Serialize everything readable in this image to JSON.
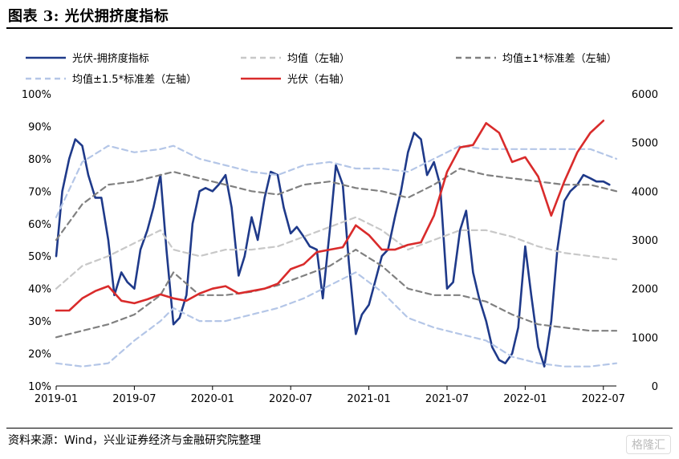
{
  "figure": {
    "title": "图表 3:  光伏拥挤度指标",
    "source": "资料来源：Wind，兴业证券经济与金融研究院整理",
    "watermark": "格隆汇"
  },
  "chart_data": {
    "type": "line",
    "x_ticks": [
      "2019-01",
      "2019-07",
      "2020-01",
      "2020-07",
      "2021-01",
      "2021-07",
      "2022-01",
      "2022-07"
    ],
    "x_range": [
      "2019-01",
      "2022-08"
    ],
    "left_axis": {
      "ticks": [
        "10%",
        "20%",
        "30%",
        "40%",
        "50%",
        "60%",
        "70%",
        "80%",
        "90%",
        "100%"
      ],
      "ylim": [
        10,
        100
      ]
    },
    "right_axis": {
      "ticks": [
        "0",
        "1000",
        "2000",
        "3000",
        "4000",
        "5000",
        "6000"
      ],
      "ylim": [
        0,
        6000
      ]
    },
    "colors": {
      "crowding": "#1f3a8a",
      "mean": "#c8c8c8",
      "band1": "#808080",
      "band15": "#b4c6e7",
      "pv": "#d92b2b"
    },
    "series": [
      {
        "name": "光伏-拥挤度指标",
        "axis": "left",
        "style": "solid",
        "color": "#1f3a8a",
        "points": [
          [
            "2019-01",
            50
          ],
          [
            "2019-01-15",
            70
          ],
          [
            "2019-02",
            80
          ],
          [
            "2019-02-15",
            86
          ],
          [
            "2019-03",
            84
          ],
          [
            "2019-03-15",
            75
          ],
          [
            "2019-04",
            68
          ],
          [
            "2019-04-15",
            68
          ],
          [
            "2019-05",
            55
          ],
          [
            "2019-05-15",
            38
          ],
          [
            "2019-06",
            45
          ],
          [
            "2019-06-15",
            42
          ],
          [
            "2019-07",
            40
          ],
          [
            "2019-07-15",
            52
          ],
          [
            "2019-08",
            58
          ],
          [
            "2019-08-15",
            65
          ],
          [
            "2019-09",
            75
          ],
          [
            "2019-09-15",
            52
          ],
          [
            "2019-10",
            29
          ],
          [
            "2019-10-15",
            31
          ],
          [
            "2019-11",
            38
          ],
          [
            "2019-11-15",
            60
          ],
          [
            "2019-12",
            70
          ],
          [
            "2019-12-15",
            71
          ],
          [
            "2020-01",
            70
          ],
          [
            "2020-01-15",
            72
          ],
          [
            "2020-02",
            75
          ],
          [
            "2020-02-15",
            65
          ],
          [
            "2020-03",
            44
          ],
          [
            "2020-03-15",
            50
          ],
          [
            "2020-04",
            62
          ],
          [
            "2020-04-15",
            55
          ],
          [
            "2020-05",
            68
          ],
          [
            "2020-05-15",
            76
          ],
          [
            "2020-06",
            75
          ],
          [
            "2020-06-15",
            65
          ],
          [
            "2020-07",
            57
          ],
          [
            "2020-07-15",
            59
          ],
          [
            "2020-08",
            56
          ],
          [
            "2020-08-15",
            53
          ],
          [
            "2020-09",
            52
          ],
          [
            "2020-09-15",
            37
          ],
          [
            "2020-10",
            58
          ],
          [
            "2020-10-15",
            78
          ],
          [
            "2020-11",
            72
          ],
          [
            "2020-11-15",
            48
          ],
          [
            "2020-12",
            26
          ],
          [
            "2020-12-15",
            32
          ],
          [
            "2021-01",
            35
          ],
          [
            "2021-01-15",
            42
          ],
          [
            "2021-02",
            50
          ],
          [
            "2021-02-15",
            52
          ],
          [
            "2021-03",
            62
          ],
          [
            "2021-03-15",
            70
          ],
          [
            "2021-04",
            82
          ],
          [
            "2021-04-15",
            88
          ],
          [
            "2021-05",
            86
          ],
          [
            "2021-05-15",
            75
          ],
          [
            "2021-06",
            79
          ],
          [
            "2021-06-15",
            72
          ],
          [
            "2021-07",
            40
          ],
          [
            "2021-07-15",
            42
          ],
          [
            "2021-08",
            58
          ],
          [
            "2021-08-15",
            64
          ],
          [
            "2021-09",
            45
          ],
          [
            "2021-09-15",
            37
          ],
          [
            "2021-10",
            30
          ],
          [
            "2021-10-15",
            22
          ],
          [
            "2021-11",
            18
          ],
          [
            "2021-11-15",
            17
          ],
          [
            "2021-12",
            20
          ],
          [
            "2021-12-15",
            28
          ],
          [
            "2022-01",
            53
          ],
          [
            "2022-01-15",
            38
          ],
          [
            "2022-02",
            22
          ],
          [
            "2022-02-15",
            16
          ],
          [
            "2022-03",
            30
          ],
          [
            "2022-03-15",
            52
          ],
          [
            "2022-04",
            67
          ],
          [
            "2022-04-15",
            70
          ],
          [
            "2022-05",
            72
          ],
          [
            "2022-05-15",
            75
          ],
          [
            "2022-06",
            74
          ],
          [
            "2022-06-15",
            73
          ],
          [
            "2022-07",
            73
          ],
          [
            "2022-07-15",
            72
          ]
        ]
      },
      {
        "name": "均值（左轴）",
        "axis": "left",
        "style": "dashed",
        "color": "#c8c8c8",
        "points": [
          [
            "2019-01",
            40
          ],
          [
            "2019-03",
            47
          ],
          [
            "2019-05",
            50
          ],
          [
            "2019-07",
            54
          ],
          [
            "2019-09",
            58
          ],
          [
            "2019-10",
            52
          ],
          [
            "2019-12",
            50
          ],
          [
            "2020-02",
            52
          ],
          [
            "2020-04",
            52
          ],
          [
            "2020-06",
            53
          ],
          [
            "2020-08",
            56
          ],
          [
            "2020-10",
            59
          ],
          [
            "2020-12",
            62
          ],
          [
            "2021-02",
            58
          ],
          [
            "2021-04",
            52
          ],
          [
            "2021-06",
            55
          ],
          [
            "2021-08",
            58
          ],
          [
            "2021-10",
            58
          ],
          [
            "2021-12",
            56
          ],
          [
            "2022-02",
            53
          ],
          [
            "2022-04",
            51
          ],
          [
            "2022-06",
            50
          ],
          [
            "2022-08",
            49
          ]
        ]
      },
      {
        "name": "均值±1*标准差（左轴）",
        "axis": "left",
        "style": "dashed",
        "color": "#808080",
        "points": [
          [
            "2019-01",
            25
          ],
          [
            "2019-03",
            27
          ],
          [
            "2019-05",
            29
          ],
          [
            "2019-07",
            32
          ],
          [
            "2019-09",
            38
          ],
          [
            "2019-10",
            45
          ],
          [
            "2019-12",
            38
          ],
          [
            "2020-02",
            38
          ],
          [
            "2020-04",
            39
          ],
          [
            "2020-06",
            41
          ],
          [
            "2020-08",
            44
          ],
          [
            "2020-10",
            47
          ],
          [
            "2020-12",
            52
          ],
          [
            "2021-02",
            47
          ],
          [
            "2021-04",
            40
          ],
          [
            "2021-06",
            38
          ],
          [
            "2021-08",
            38
          ],
          [
            "2021-10",
            36
          ],
          [
            "2021-12",
            32
          ],
          [
            "2022-02",
            29
          ],
          [
            "2022-04",
            28
          ],
          [
            "2022-06",
            27
          ],
          [
            "2022-08",
            27
          ]
        ]
      },
      {
        "name": "均值±1*标准差（左轴）",
        "axis": "left",
        "style": "dashed",
        "color": "#808080",
        "points": [
          [
            "2019-01",
            55
          ],
          [
            "2019-03",
            66
          ],
          [
            "2019-05",
            72
          ],
          [
            "2019-07",
            73
          ],
          [
            "2019-09",
            75
          ],
          [
            "2019-10",
            76
          ],
          [
            "2019-12",
            74
          ],
          [
            "2020-02",
            72
          ],
          [
            "2020-04",
            70
          ],
          [
            "2020-06",
            69
          ],
          [
            "2020-08",
            72
          ],
          [
            "2020-10",
            73
          ],
          [
            "2020-12",
            71
          ],
          [
            "2021-02",
            70
          ],
          [
            "2021-04",
            68
          ],
          [
            "2021-06",
            72
          ],
          [
            "2021-08",
            77
          ],
          [
            "2021-10",
            75
          ],
          [
            "2021-12",
            74
          ],
          [
            "2022-02",
            73
          ],
          [
            "2022-04",
            72
          ],
          [
            "2022-06",
            72
          ],
          [
            "2022-08",
            70
          ]
        ]
      },
      {
        "name": "均值±1.5*标准差（左轴）",
        "axis": "left",
        "style": "dashed",
        "color": "#b4c6e7",
        "points": [
          [
            "2019-01",
            17
          ],
          [
            "2019-03",
            16
          ],
          [
            "2019-05",
            17
          ],
          [
            "2019-07",
            24
          ],
          [
            "2019-09",
            30
          ],
          [
            "2019-10",
            34
          ],
          [
            "2019-12",
            30
          ],
          [
            "2020-02",
            30
          ],
          [
            "2020-04",
            32
          ],
          [
            "2020-06",
            34
          ],
          [
            "2020-08",
            37
          ],
          [
            "2020-10",
            41
          ],
          [
            "2020-12",
            45
          ],
          [
            "2021-02",
            39
          ],
          [
            "2021-04",
            31
          ],
          [
            "2021-06",
            28
          ],
          [
            "2021-08",
            26
          ],
          [
            "2021-10",
            24
          ],
          [
            "2021-12",
            19
          ],
          [
            "2022-02",
            17
          ],
          [
            "2022-04",
            16
          ],
          [
            "2022-06",
            16
          ],
          [
            "2022-08",
            17
          ]
        ]
      },
      {
        "name": "均值±1.5*标准差（左轴）",
        "axis": "left",
        "style": "dashed",
        "color": "#b4c6e7",
        "points": [
          [
            "2019-01",
            62
          ],
          [
            "2019-03",
            79
          ],
          [
            "2019-05",
            84
          ],
          [
            "2019-07",
            82
          ],
          [
            "2019-09",
            83
          ],
          [
            "2019-10",
            84
          ],
          [
            "2019-12",
            80
          ],
          [
            "2020-02",
            78
          ],
          [
            "2020-04",
            76
          ],
          [
            "2020-06",
            75
          ],
          [
            "2020-08",
            78
          ],
          [
            "2020-10",
            79
          ],
          [
            "2020-12",
            77
          ],
          [
            "2021-02",
            77
          ],
          [
            "2021-04",
            76
          ],
          [
            "2021-06",
            80
          ],
          [
            "2021-08",
            84
          ],
          [
            "2021-10",
            83
          ],
          [
            "2021-12",
            83
          ],
          [
            "2022-02",
            83
          ],
          [
            "2022-04",
            83
          ],
          [
            "2022-06",
            83
          ],
          [
            "2022-08",
            80
          ]
        ]
      },
      {
        "name": "光伏（右轴）",
        "axis": "right",
        "style": "solid",
        "color": "#d92b2b",
        "points": [
          [
            "2019-01",
            1550
          ],
          [
            "2019-02",
            1550
          ],
          [
            "2019-03",
            1800
          ],
          [
            "2019-04",
            1950
          ],
          [
            "2019-05",
            2050
          ],
          [
            "2019-06",
            1750
          ],
          [
            "2019-07",
            1700
          ],
          [
            "2019-08",
            1780
          ],
          [
            "2019-09",
            1880
          ],
          [
            "2019-10",
            1800
          ],
          [
            "2019-11",
            1750
          ],
          [
            "2019-12",
            1900
          ],
          [
            "2020-01",
            2000
          ],
          [
            "2020-02",
            2050
          ],
          [
            "2020-03",
            1900
          ],
          [
            "2020-04",
            1950
          ],
          [
            "2020-05",
            2000
          ],
          [
            "2020-06",
            2100
          ],
          [
            "2020-07",
            2400
          ],
          [
            "2020-08",
            2500
          ],
          [
            "2020-09",
            2750
          ],
          [
            "2020-10",
            2800
          ],
          [
            "2020-11",
            2850
          ],
          [
            "2020-12",
            3300
          ],
          [
            "2021-01",
            3100
          ],
          [
            "2021-02",
            2800
          ],
          [
            "2021-03",
            2800
          ],
          [
            "2021-04",
            2900
          ],
          [
            "2021-05",
            2950
          ],
          [
            "2021-06",
            3500
          ],
          [
            "2021-07",
            4400
          ],
          [
            "2021-08",
            4900
          ],
          [
            "2021-09",
            4950
          ],
          [
            "2021-10",
            5400
          ],
          [
            "2021-11",
            5200
          ],
          [
            "2021-12",
            4600
          ],
          [
            "2022-01",
            4700
          ],
          [
            "2022-02",
            4300
          ],
          [
            "2022-03",
            3500
          ],
          [
            "2022-04",
            4200
          ],
          [
            "2022-05",
            4800
          ],
          [
            "2022-06",
            5200
          ],
          [
            "2022-07",
            5450
          ]
        ]
      }
    ],
    "legend": [
      {
        "label": "光伏-拥挤度指标",
        "style": "solid",
        "color": "#1f3a8a"
      },
      {
        "label": "均值（左轴）",
        "style": "dashed",
        "color": "#c8c8c8"
      },
      {
        "label": "均值±1*标准差（左轴）",
        "style": "dashed",
        "color": "#808080"
      },
      {
        "label": "均值±1.5*标准差（左轴）",
        "style": "dashed",
        "color": "#b4c6e7"
      },
      {
        "label": "光伏（右轴）",
        "style": "solid",
        "color": "#d92b2b"
      }
    ],
    "legend_position": "top",
    "grid": false
  }
}
